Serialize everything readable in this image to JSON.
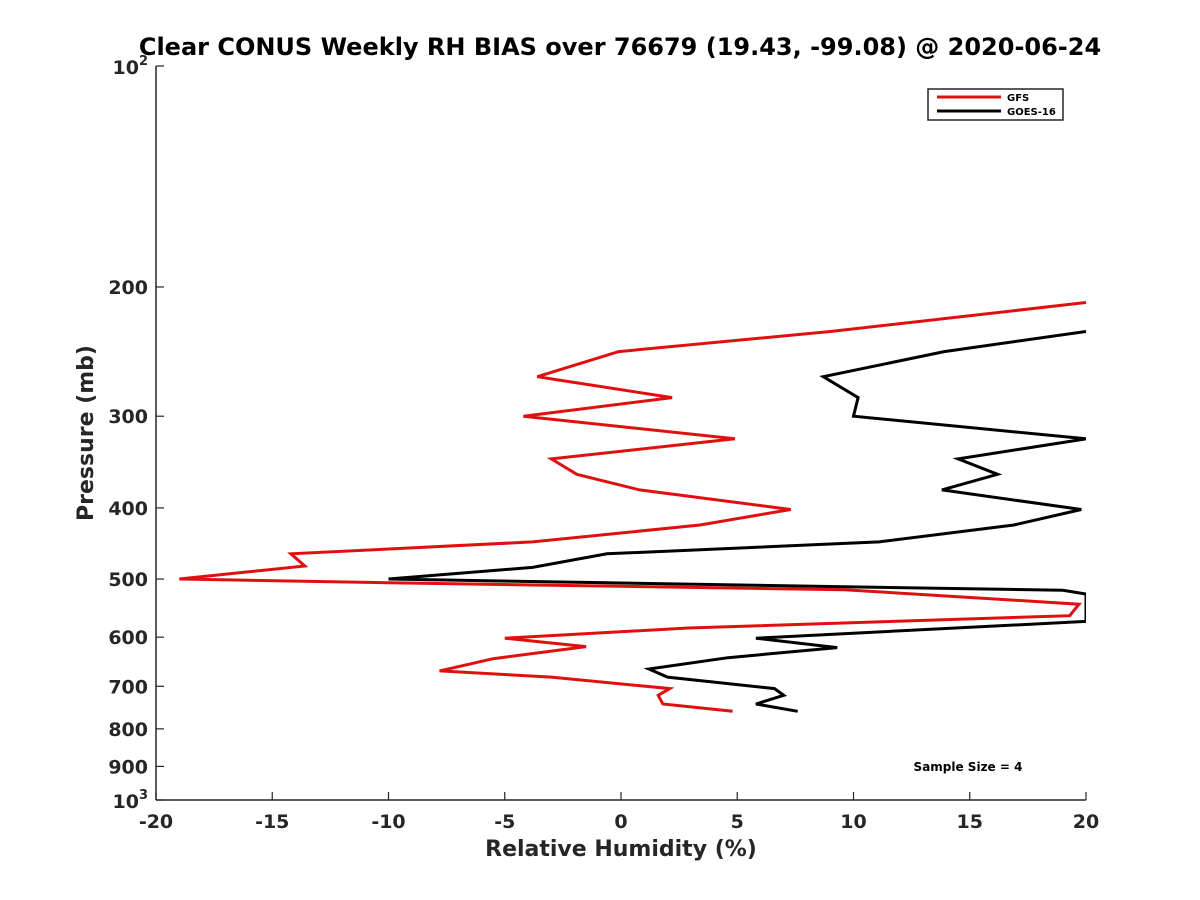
{
  "chart_data": {
    "type": "line",
    "title": "Clear CONUS Weekly RH BIAS over 76679 (19.43, -99.08) @ 2020-06-24",
    "xlabel": "Relative Humidity (%)",
    "ylabel": "Pressure (mb)",
    "xlim": [
      -20,
      20
    ],
    "ylim": [
      100,
      1000
    ],
    "y_scale": "log",
    "y_reversed": true,
    "x_ticks": [
      -20,
      -15,
      -10,
      -5,
      0,
      5,
      10,
      15,
      20
    ],
    "x_tick_labels": [
      "-20",
      "-15",
      "-10",
      "-5",
      "0",
      "5",
      "10",
      "15",
      "20"
    ],
    "y_ticks": [
      {
        "value": 100,
        "base": "10",
        "exp": "2"
      },
      {
        "value": 200,
        "label": "200"
      },
      {
        "value": 300,
        "label": "300"
      },
      {
        "value": 400,
        "label": "400"
      },
      {
        "value": 500,
        "label": "500"
      },
      {
        "value": 600,
        "label": "600"
      },
      {
        "value": 700,
        "label": "700"
      },
      {
        "value": 800,
        "label": "800"
      },
      {
        "value": 900,
        "label": "900"
      },
      {
        "value": 1000,
        "base": "10",
        "exp": "3"
      }
    ],
    "grid": false,
    "legend_position": "top-right",
    "annotation": "Sample Size = 4",
    "series": [
      {
        "name": "GFS",
        "color": "#e01010",
        "points": [
          [
            20,
            210
          ],
          [
            9,
            230
          ],
          [
            -0.1,
            245
          ],
          [
            -3.6,
            265
          ],
          [
            2.2,
            283
          ],
          [
            -4.2,
            300
          ],
          [
            4.9,
            322
          ],
          [
            -3,
            343
          ],
          [
            -1.9,
            360
          ],
          [
            0.8,
            378
          ],
          [
            7.3,
            402
          ],
          [
            3.4,
            422
          ],
          [
            -3.8,
            445
          ],
          [
            -14.2,
            462
          ],
          [
            -13.6,
            480
          ],
          [
            -19,
            500
          ],
          [
            -10,
            506
          ],
          [
            9.6,
            517
          ],
          [
            19.7,
            541
          ],
          [
            19.3,
            561
          ],
          [
            2.9,
            583
          ],
          [
            -5,
            602
          ],
          [
            -1.5,
            618
          ],
          [
            -5.5,
            642
          ],
          [
            -7.8,
            667
          ],
          [
            -3,
            680
          ],
          [
            2.1,
            705
          ],
          [
            1.6,
            720
          ],
          [
            1.8,
            740
          ],
          [
            4.8,
            757
          ]
        ]
      },
      {
        "name": "GOES-16",
        "color": "#000000",
        "points": [
          [
            20,
            230
          ],
          [
            13.9,
            245
          ],
          [
            8.7,
            265
          ],
          [
            10.2,
            283
          ],
          [
            10,
            300
          ],
          [
            20,
            322
          ],
          [
            14.5,
            343
          ],
          [
            16.2,
            360
          ],
          [
            13.8,
            378
          ],
          [
            19.8,
            402
          ],
          [
            16.9,
            422
          ],
          [
            11.1,
            445
          ],
          [
            -0.6,
            462
          ],
          [
            -3.8,
            482
          ],
          [
            -10,
            500
          ],
          [
            -0.6,
            506
          ],
          [
            19,
            518
          ],
          [
            20,
            524
          ],
          [
            20,
            571
          ],
          [
            5.8,
            602
          ],
          [
            9.3,
            620
          ],
          [
            4.6,
            640
          ],
          [
            1.2,
            663
          ],
          [
            2,
            680
          ],
          [
            6.6,
            705
          ],
          [
            7,
            720
          ],
          [
            5.8,
            740
          ],
          [
            7.6,
            757
          ]
        ]
      }
    ]
  }
}
